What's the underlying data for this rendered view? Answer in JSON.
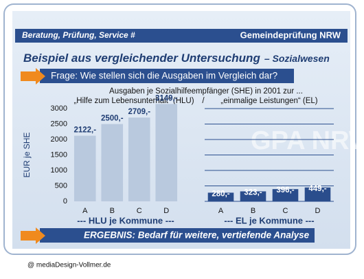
{
  "slide": {
    "header_left": "Beratung, Prüfung, Service #",
    "header_right": "Gemeindeprüfung NRW",
    "title": "Beispiel aus vergleichender Untersuchung",
    "title_suffix": "– Sozialwesen",
    "question": "Frage: Wie stellen sich die Ausgaben im Vergleich dar?",
    "subtitle": "Ausgaben je Sozialhilfeempfänger (SHE) in 2001 zur ...",
    "separator": "/",
    "watermark": "GPA NRW",
    "result": "ERGEBNIS: Bedarf für weitere, vertiefende Analyse",
    "footer": "@ mediaDesign-Vollmer.de"
  },
  "chart_data": [
    {
      "type": "bar",
      "title": "„Hilfe zum Lebensunterhalt“ (HLU)",
      "y_label": "EUR je SHE",
      "x_label": "--- HLU je Kommune ---",
      "categories": [
        "A",
        "B",
        "C",
        "D"
      ],
      "values": [
        2122,
        2500,
        2709,
        3149
      ],
      "value_labels": [
        "2122,-",
        "2500,-",
        "2709,-",
        "3149,-"
      ],
      "color": "#b9c9de",
      "ylim": [
        0,
        3000
      ],
      "yticks": [
        0,
        500,
        1000,
        1500,
        2000,
        2500,
        3000
      ],
      "grid": false
    },
    {
      "type": "bar",
      "title": "„einmalige Leistungen“ (EL)",
      "x_label": "--- EL je Kommune ---",
      "categories": [
        "A",
        "B",
        "C",
        "D"
      ],
      "values": [
        280,
        323,
        396,
        449
      ],
      "value_labels": [
        "280,-",
        "323,-",
        "396,-",
        "449,-"
      ],
      "color": "#2a4d8c",
      "ylim": [
        0,
        3000
      ],
      "grid": true
    }
  ]
}
